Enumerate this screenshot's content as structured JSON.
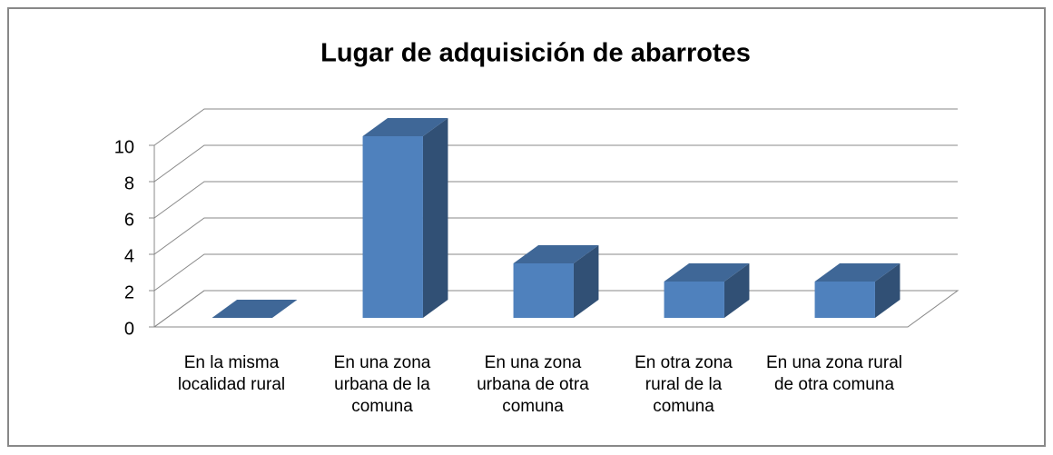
{
  "chart_data": {
    "type": "bar",
    "title": "Lugar de adquisición de abarrotes",
    "categories": [
      "En la misma localidad rural",
      "En una zona urbana de la comuna",
      "En una zona urbana de otra comuna",
      "En otra zona rural de la comuna",
      "En una zona rural de otra comuna"
    ],
    "values": [
      0,
      10,
      3,
      2,
      2
    ],
    "color": "#4f81bd",
    "ylim": [
      0,
      10
    ],
    "yticks": [
      0,
      2,
      4,
      6,
      8,
      10
    ],
    "grid": true
  }
}
